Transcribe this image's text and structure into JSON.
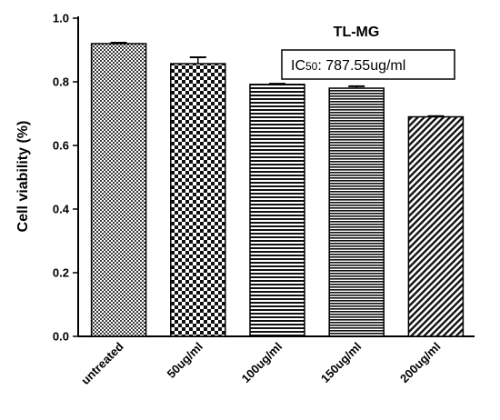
{
  "chart_data": {
    "type": "bar",
    "title": "TL-MG",
    "annotation": {
      "prefix": "IC",
      "subscript": "50",
      "suffix": ": 787.55ug/ml"
    },
    "ylabel": "Cell viability (%)",
    "xlabel": "",
    "ylim": [
      0,
      1.0
    ],
    "yticks": [
      0.0,
      0.2,
      0.4,
      0.6,
      0.8,
      1.0
    ],
    "ytick_labels": [
      "0.0",
      "0.2",
      "0.4",
      "0.6",
      "0.8",
      "1.0"
    ],
    "categories": [
      "untreated",
      "50ug/ml",
      "100ug/ml",
      "150ug/ml",
      "200ug/ml"
    ],
    "values": [
      0.92,
      0.857,
      0.792,
      0.78,
      0.69
    ],
    "errors": [
      0.003,
      0.02,
      0.002,
      0.006,
      0.002
    ],
    "patterns": [
      "fine-checker",
      "checker",
      "horizontal-lines",
      "horizontal-lines-dense",
      "diagonal-lines"
    ],
    "grid": false,
    "legend": "none"
  }
}
